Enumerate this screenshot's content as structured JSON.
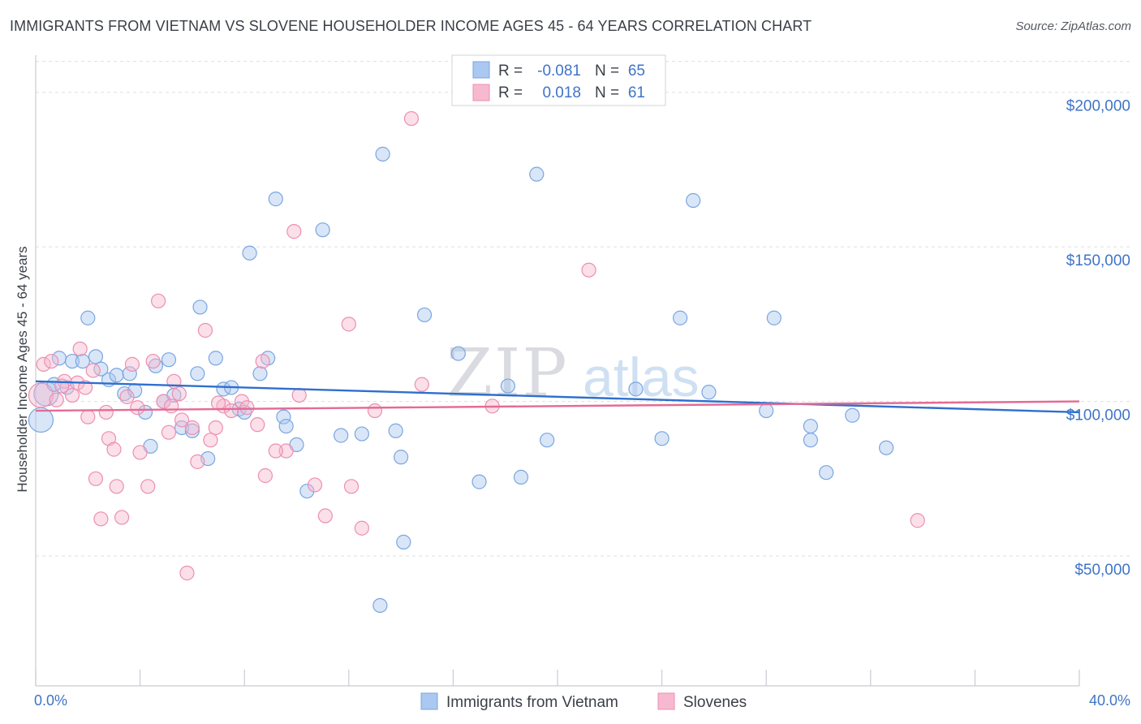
{
  "title": "IMMIGRANTS FROM VIETNAM VS SLOVENE HOUSEHOLDER INCOME AGES 45 - 64 YEARS CORRELATION CHART",
  "source": "Source: ZipAtlas.com",
  "watermark": {
    "zip": "ZIP",
    "atlas": "atlas"
  },
  "legend": {
    "r_label": "R =",
    "n_label": "N =",
    "entries": [
      {
        "r": "-0.081",
        "n": "65"
      },
      {
        "r": "0.018",
        "n": "61"
      }
    ]
  },
  "chart_data": {
    "type": "scatter",
    "xlabel": "",
    "ylabel": "Householder Income Ages 45 - 64 years",
    "xlim": [
      0,
      40
    ],
    "ylim": [
      8000,
      212000
    ],
    "x_tick_labels": [
      "0.0%",
      "40.0%"
    ],
    "y_ticks": [
      {
        "value": 50000,
        "label": "$50,000"
      },
      {
        "value": 100000,
        "label": "$100,000"
      },
      {
        "value": 150000,
        "label": "$150,000"
      },
      {
        "value": 200000,
        "label": "$200,000"
      }
    ],
    "grid": true,
    "legend_position": "top-center",
    "colors": {
      "blue_fill": "#aac8f0",
      "blue_stroke": "#7aa6e0",
      "blue_line": "#2e6fce",
      "pink_fill": "#f7b9cf",
      "pink_stroke": "#ec8fb0",
      "pink_line": "#e46b95"
    },
    "series": [
      {
        "name": "Immigrants from Vietnam",
        "color": "blue",
        "trend": {
          "x0": 0,
          "y0": 106500,
          "x1": 40,
          "y1": 96500
        },
        "points": [
          {
            "x": 0.2,
            "y": 94000,
            "big": true
          },
          {
            "x": 0.4,
            "y": 102500,
            "big": true
          },
          {
            "x": 0.7,
            "y": 105500
          },
          {
            "x": 0.9,
            "y": 114000
          },
          {
            "x": 1.2,
            "y": 104500
          },
          {
            "x": 1.4,
            "y": 113000
          },
          {
            "x": 1.8,
            "y": 113000
          },
          {
            "x": 2.0,
            "y": 127000
          },
          {
            "x": 2.3,
            "y": 114500
          },
          {
            "x": 2.5,
            "y": 110500
          },
          {
            "x": 2.8,
            "y": 107000
          },
          {
            "x": 3.1,
            "y": 108500
          },
          {
            "x": 3.4,
            "y": 102500
          },
          {
            "x": 3.6,
            "y": 109000
          },
          {
            "x": 3.8,
            "y": 103500
          },
          {
            "x": 4.2,
            "y": 96500
          },
          {
            "x": 4.4,
            "y": 85500
          },
          {
            "x": 4.6,
            "y": 111500
          },
          {
            "x": 4.9,
            "y": 100000
          },
          {
            "x": 5.1,
            "y": 113500
          },
          {
            "x": 5.3,
            "y": 102000
          },
          {
            "x": 5.6,
            "y": 91500
          },
          {
            "x": 6.0,
            "y": 90500
          },
          {
            "x": 6.2,
            "y": 109000
          },
          {
            "x": 6.3,
            "y": 130500
          },
          {
            "x": 6.6,
            "y": 81500
          },
          {
            "x": 6.9,
            "y": 114000
          },
          {
            "x": 7.2,
            "y": 104000
          },
          {
            "x": 7.5,
            "y": 104500
          },
          {
            "x": 7.8,
            "y": 97500
          },
          {
            "x": 8.0,
            "y": 96500
          },
          {
            "x": 8.2,
            "y": 148000
          },
          {
            "x": 8.6,
            "y": 109000
          },
          {
            "x": 8.9,
            "y": 114000
          },
          {
            "x": 9.2,
            "y": 165500
          },
          {
            "x": 9.5,
            "y": 95000
          },
          {
            "x": 9.6,
            "y": 92000
          },
          {
            "x": 10.0,
            "y": 86000
          },
          {
            "x": 10.4,
            "y": 71000
          },
          {
            "x": 11.0,
            "y": 155500
          },
          {
            "x": 11.7,
            "y": 89000
          },
          {
            "x": 12.5,
            "y": 89500
          },
          {
            "x": 13.2,
            "y": 34000
          },
          {
            "x": 13.3,
            "y": 180000
          },
          {
            "x": 13.8,
            "y": 90500
          },
          {
            "x": 14.0,
            "y": 82000
          },
          {
            "x": 14.1,
            "y": 54500
          },
          {
            "x": 14.9,
            "y": 128000
          },
          {
            "x": 16.2,
            "y": 115500
          },
          {
            "x": 17.0,
            "y": 74000
          },
          {
            "x": 18.1,
            "y": 105000
          },
          {
            "x": 18.6,
            "y": 75500
          },
          {
            "x": 19.6,
            "y": 87500
          },
          {
            "x": 19.2,
            "y": 173500
          },
          {
            "x": 23.0,
            "y": 104000
          },
          {
            "x": 24.0,
            "y": 88000
          },
          {
            "x": 24.7,
            "y": 127000
          },
          {
            "x": 25.2,
            "y": 165000
          },
          {
            "x": 25.8,
            "y": 103000
          },
          {
            "x": 28.0,
            "y": 97000
          },
          {
            "x": 28.3,
            "y": 127000
          },
          {
            "x": 29.7,
            "y": 92000
          },
          {
            "x": 29.7,
            "y": 87500
          },
          {
            "x": 30.3,
            "y": 77000
          },
          {
            "x": 31.3,
            "y": 95500
          },
          {
            "x": 32.6,
            "y": 85000
          }
        ]
      },
      {
        "name": "Slovenes",
        "color": "pink",
        "trend": {
          "x0": 0,
          "y0": 97000,
          "x1": 40,
          "y1": 100000
        },
        "points": [
          {
            "x": 0.2,
            "y": 102000,
            "big": true
          },
          {
            "x": 0.3,
            "y": 112000
          },
          {
            "x": 0.6,
            "y": 113000
          },
          {
            "x": 0.8,
            "y": 100500
          },
          {
            "x": 1.1,
            "y": 106500
          },
          {
            "x": 1.4,
            "y": 102000
          },
          {
            "x": 1.6,
            "y": 106000
          },
          {
            "x": 1.7,
            "y": 117000
          },
          {
            "x": 1.9,
            "y": 104500
          },
          {
            "x": 2.0,
            "y": 95000
          },
          {
            "x": 2.2,
            "y": 110000
          },
          {
            "x": 2.3,
            "y": 75000
          },
          {
            "x": 2.5,
            "y": 62000
          },
          {
            "x": 2.7,
            "y": 96500
          },
          {
            "x": 2.8,
            "y": 88000
          },
          {
            "x": 3.0,
            "y": 84500
          },
          {
            "x": 3.1,
            "y": 72500
          },
          {
            "x": 3.3,
            "y": 62500
          },
          {
            "x": 3.5,
            "y": 101500
          },
          {
            "x": 3.7,
            "y": 112000
          },
          {
            "x": 3.9,
            "y": 98000
          },
          {
            "x": 4.0,
            "y": 83500
          },
          {
            "x": 4.3,
            "y": 72500
          },
          {
            "x": 4.5,
            "y": 113000
          },
          {
            "x": 4.7,
            "y": 132500
          },
          {
            "x": 4.9,
            "y": 100000
          },
          {
            "x": 5.1,
            "y": 90000
          },
          {
            "x": 5.3,
            "y": 106500
          },
          {
            "x": 5.5,
            "y": 102500
          },
          {
            "x": 5.6,
            "y": 94000
          },
          {
            "x": 5.8,
            "y": 44500
          },
          {
            "x": 6.0,
            "y": 91500
          },
          {
            "x": 6.2,
            "y": 80500
          },
          {
            "x": 6.5,
            "y": 123000
          },
          {
            "x": 6.7,
            "y": 87500
          },
          {
            "x": 6.9,
            "y": 91500
          },
          {
            "x": 7.2,
            "y": 98500
          },
          {
            "x": 7.5,
            "y": 97000
          },
          {
            "x": 7.9,
            "y": 100000
          },
          {
            "x": 8.1,
            "y": 98000
          },
          {
            "x": 8.5,
            "y": 92500
          },
          {
            "x": 8.7,
            "y": 113000
          },
          {
            "x": 8.8,
            "y": 76000
          },
          {
            "x": 9.6,
            "y": 84000
          },
          {
            "x": 9.9,
            "y": 155000
          },
          {
            "x": 10.1,
            "y": 102000
          },
          {
            "x": 10.7,
            "y": 73000
          },
          {
            "x": 11.1,
            "y": 63000
          },
          {
            "x": 12.0,
            "y": 125000
          },
          {
            "x": 12.1,
            "y": 72500
          },
          {
            "x": 12.5,
            "y": 59000
          },
          {
            "x": 13.0,
            "y": 97000
          },
          {
            "x": 14.4,
            "y": 191500
          },
          {
            "x": 14.8,
            "y": 105500
          },
          {
            "x": 17.5,
            "y": 98500
          },
          {
            "x": 21.2,
            "y": 142500
          },
          {
            "x": 33.8,
            "y": 61500
          },
          {
            "x": 1.0,
            "y": 105000
          },
          {
            "x": 5.2,
            "y": 98500
          },
          {
            "x": 7.0,
            "y": 99500
          },
          {
            "x": 9.2,
            "y": 84000
          }
        ]
      }
    ]
  }
}
